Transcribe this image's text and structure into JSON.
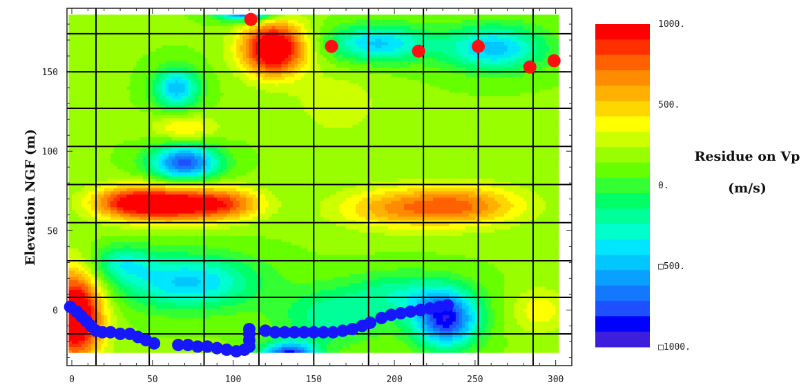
{
  "chart_data": {
    "type": "heatmap",
    "title": "",
    "xlabel": "",
    "ylabel": "Elevation NGF (m)",
    "xlim": [
      -3,
      310
    ],
    "ylim": [
      -35,
      190
    ],
    "x_ticks": [
      "0",
      "50",
      "100",
      "150",
      "200",
      "250",
      "300"
    ],
    "y_ticks": [
      "0",
      "50",
      "100",
      "150"
    ],
    "grid": true,
    "grid_x": [
      15,
      48,
      82,
      116,
      150,
      184,
      218,
      252,
      286
    ],
    "grid_y": [
      -15,
      8,
      31,
      55,
      79,
      103,
      127,
      150,
      174
    ],
    "colorbar": {
      "title_line1": "Residue on Vp",
      "title_line2": "(m/s)",
      "tick_labels": [
        "1000.",
        "500.",
        "0.",
        "□500.",
        "□1000."
      ],
      "tick_values": [
        1000,
        500,
        0,
        -500,
        -1000
      ],
      "range": [
        -1000,
        1000
      ],
      "levels": 21,
      "colors": [
        "#ff0000",
        "#ff3000",
        "#ff6000",
        "#ff8c00",
        "#ffb000",
        "#ffd700",
        "#ffff00",
        "#ccff00",
        "#99ff00",
        "#66ff00",
        "#33ff33",
        "#00ff66",
        "#00ff99",
        "#00ffcc",
        "#00e6ff",
        "#00c8ff",
        "#0aa0ff",
        "#1478ff",
        "#1e50ff",
        "#0000ff",
        "#3c1edc"
      ]
    },
    "anomalies": [
      {
        "x": 125,
        "y": 165,
        "sx": 14,
        "sy": 12,
        "v": 1050
      },
      {
        "x": 62,
        "y": 67,
        "sx": 24,
        "sy": 8,
        "v": 900
      },
      {
        "x": 32,
        "y": 68,
        "sx": 16,
        "sy": 7,
        "v": 450
      },
      {
        "x": 98,
        "y": 67,
        "sx": 16,
        "sy": 7,
        "v": 420
      },
      {
        "x": 240,
        "y": 66,
        "sx": 28,
        "sy": 9,
        "v": 560
      },
      {
        "x": 195,
        "y": 64,
        "sx": 25,
        "sy": 9,
        "v": 330
      },
      {
        "x": 2,
        "y": -3,
        "sx": 12,
        "sy": 20,
        "v": 1100
      },
      {
        "x": 70,
        "y": 115,
        "sx": 14,
        "sy": 6,
        "v": 300
      },
      {
        "x": 70,
        "y": 93,
        "sx": 15,
        "sy": 8,
        "v": -900
      },
      {
        "x": 65,
        "y": 140,
        "sx": 10,
        "sy": 9,
        "v": -650
      },
      {
        "x": 108,
        "y": 188,
        "sx": 12,
        "sy": 4,
        "v": -1000
      },
      {
        "x": 190,
        "y": 168,
        "sx": 22,
        "sy": 8,
        "v": -600
      },
      {
        "x": 262,
        "y": 165,
        "sx": 22,
        "sy": 10,
        "v": -620
      },
      {
        "x": 72,
        "y": 18,
        "sx": 30,
        "sy": 12,
        "v": -600
      },
      {
        "x": 30,
        "y": 30,
        "sx": 14,
        "sy": 8,
        "v": -350
      },
      {
        "x": 135,
        "y": -28,
        "sx": 12,
        "sy": 6,
        "v": -1000
      },
      {
        "x": 160,
        "y": -4,
        "sx": 22,
        "sy": 12,
        "v": -350
      },
      {
        "x": 232,
        "y": -6,
        "sx": 14,
        "sy": 12,
        "v": -1000
      },
      {
        "x": 205,
        "y": 10,
        "sx": 25,
        "sy": 10,
        "v": -350
      },
      {
        "x": 290,
        "y": 0,
        "sx": 12,
        "sy": 10,
        "v": 250
      },
      {
        "x": 165,
        "y": 130,
        "sx": 20,
        "sy": 15,
        "v": 150
      }
    ],
    "sources_red": [
      [
        111,
        183
      ],
      [
        161,
        166
      ],
      [
        215,
        163
      ],
      [
        252,
        166
      ],
      [
        284,
        153
      ],
      [
        299,
        157
      ]
    ],
    "receivers_blue": [
      [
        -1,
        2
      ],
      [
        3,
        -1
      ],
      [
        6,
        -4
      ],
      [
        9,
        -7
      ],
      [
        12,
        -10
      ],
      [
        15,
        -13
      ],
      [
        19,
        -14
      ],
      [
        24,
        -14
      ],
      [
        30,
        -15
      ],
      [
        36,
        -15
      ],
      [
        41,
        -17
      ],
      [
        46,
        -19
      ],
      [
        51,
        -21
      ],
      [
        66,
        -22
      ],
      [
        72,
        -22
      ],
      [
        78,
        -23
      ],
      [
        84,
        -23
      ],
      [
        90,
        -24
      ],
      [
        96,
        -25
      ],
      [
        102,
        -26
      ],
      [
        107,
        -25
      ],
      [
        110,
        -23
      ],
      [
        110,
        -19
      ],
      [
        110,
        -15
      ],
      [
        110,
        -12
      ],
      [
        120,
        -13
      ],
      [
        126,
        -14
      ],
      [
        132,
        -14
      ],
      [
        138,
        -14
      ],
      [
        144,
        -14
      ],
      [
        150,
        -14
      ],
      [
        156,
        -14
      ],
      [
        162,
        -14
      ],
      [
        168,
        -13
      ],
      [
        174,
        -12
      ],
      [
        180,
        -10
      ],
      [
        185,
        -8
      ],
      [
        192,
        -5
      ],
      [
        198,
        -3
      ],
      [
        204,
        -2
      ],
      [
        210,
        -1
      ],
      [
        216,
        0
      ],
      [
        222,
        1
      ],
      [
        228,
        2
      ],
      [
        233,
        3
      ]
    ]
  }
}
